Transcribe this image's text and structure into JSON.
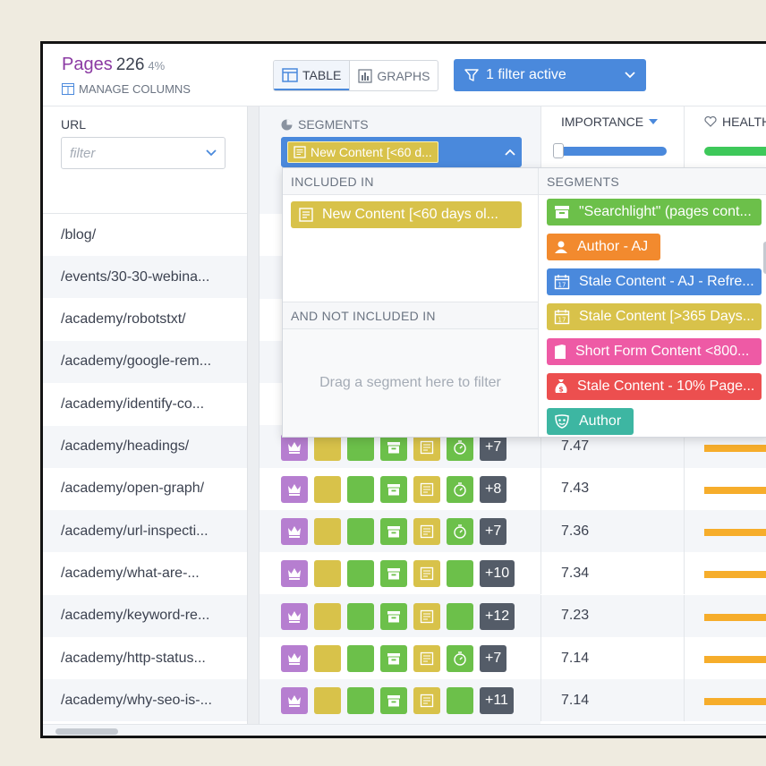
{
  "header": {
    "title": "Pages",
    "count": "226",
    "percent": "4%",
    "manage_columns": "MANAGE COLUMNS",
    "view_table": "TABLE",
    "view_graphs": "GRAPHS",
    "filter_button": "1 filter active"
  },
  "columns": {
    "url": "URL",
    "url_filter_placeholder": "filter",
    "segments": "SEGMENTS",
    "segments_selected": "New Content [<60 d...",
    "importance": "IMPORTANCE",
    "health": "HEALTH"
  },
  "dropdown": {
    "included_in": "INCLUDED IN",
    "included_segment": "New Content [<60 days ol...",
    "not_included_in": "AND NOT INCLUDED IN",
    "drop_hint": "Drag a segment here to filter",
    "segments_header": "SEGMENTS",
    "segments": [
      {
        "label": "\"Searchlight\" (pages cont...",
        "color": "#6cc04a",
        "icon": "archive-icon"
      },
      {
        "label": "Author - AJ",
        "color": "#f28a2e",
        "icon": "person-icon"
      },
      {
        "label": "Stale Content - AJ - Refre...",
        "color": "#4a89dc",
        "icon": "calendar-icon"
      },
      {
        "label": "Stale Content [>365 Days...",
        "color": "#d8c24a",
        "icon": "calendar-icon"
      },
      {
        "label": "Short Form Content <800...",
        "color": "#ee5aa5",
        "icon": "document-icon"
      },
      {
        "label": "Stale Content - 10% Page...",
        "color": "#ec4f4f",
        "icon": "money-bag-icon"
      },
      {
        "label": "Author",
        "color": "#3db6a2",
        "icon": "masks-icon"
      }
    ]
  },
  "rows": [
    {
      "url": "/blog/"
    },
    {
      "url": "/events/30-30-webina..."
    },
    {
      "url": "/academy/robotstxt/"
    },
    {
      "url": "/academy/google-rem..."
    },
    {
      "url": "/academy/identify-co..."
    },
    {
      "url": "/academy/headings/",
      "more": "+7",
      "importance": "7.47",
      "timer": true
    },
    {
      "url": "/academy/open-graph/",
      "more": "+8",
      "importance": "7.43",
      "timer": true
    },
    {
      "url": "/academy/url-inspecti...",
      "more": "+7",
      "importance": "7.36",
      "timer": true
    },
    {
      "url": "/academy/what-are-...",
      "more": "+10",
      "importance": "7.34",
      "timer": false
    },
    {
      "url": "/academy/keyword-re...",
      "more": "+12",
      "importance": "7.23",
      "timer": false
    },
    {
      "url": "/academy/http-status...",
      "more": "+7",
      "importance": "7.14",
      "timer": true
    },
    {
      "url": "/academy/why-seo-is-...",
      "more": "+11",
      "importance": "7.14",
      "timer": false
    }
  ]
}
